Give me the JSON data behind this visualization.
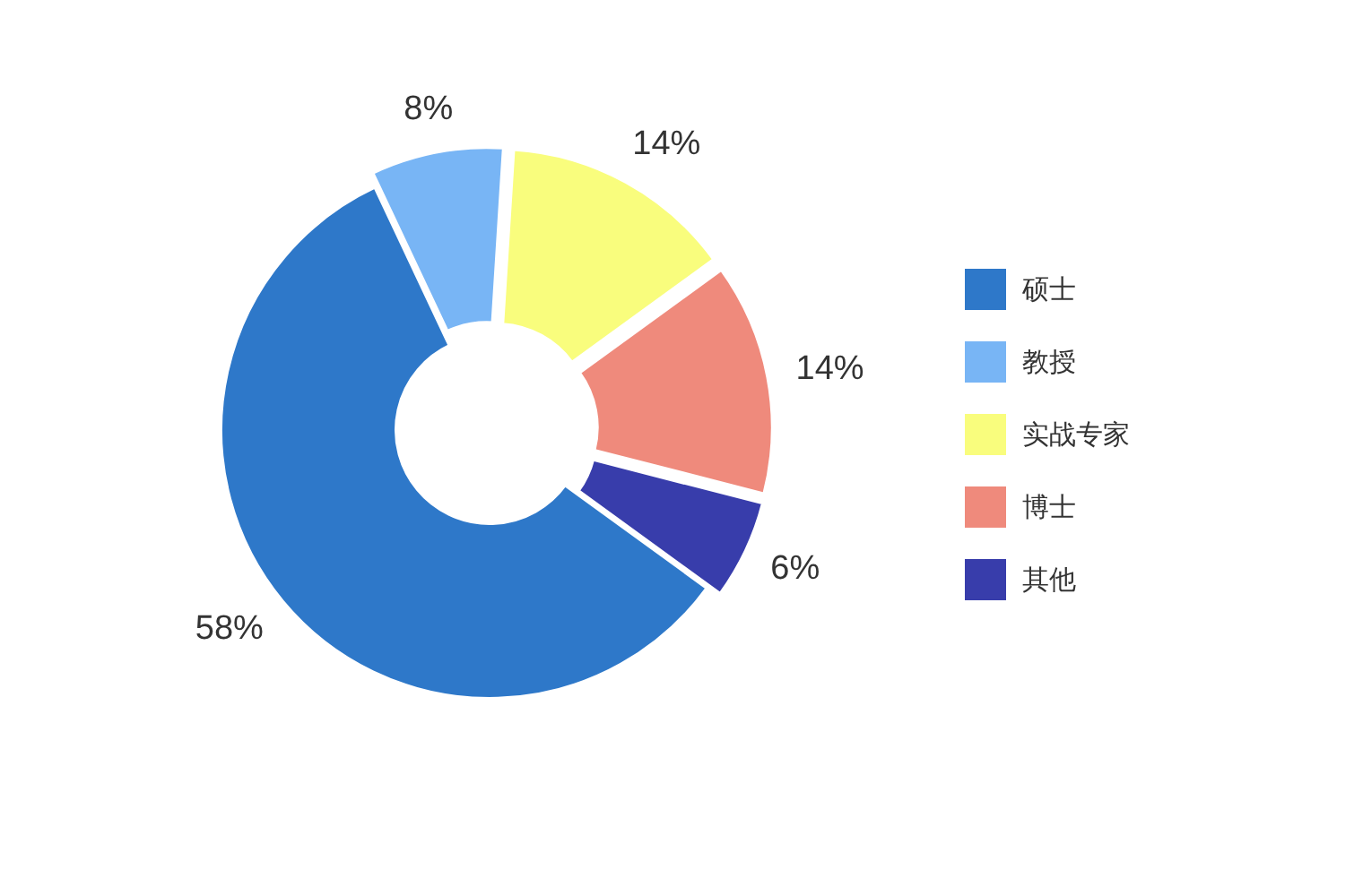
{
  "chart_data": {
    "type": "donut",
    "categories": [
      "硕士",
      "教授",
      "实战专家",
      "博士",
      "其他"
    ],
    "values": [
      58,
      8,
      14,
      14,
      6
    ],
    "colors": [
      "#2e78c9",
      "#78b5f5",
      "#f9fd7d",
      "#ef8a7c",
      "#383dab"
    ],
    "value_labels": [
      "58%",
      "8%",
      "14%",
      "14%",
      "6%"
    ],
    "legend": "right"
  }
}
